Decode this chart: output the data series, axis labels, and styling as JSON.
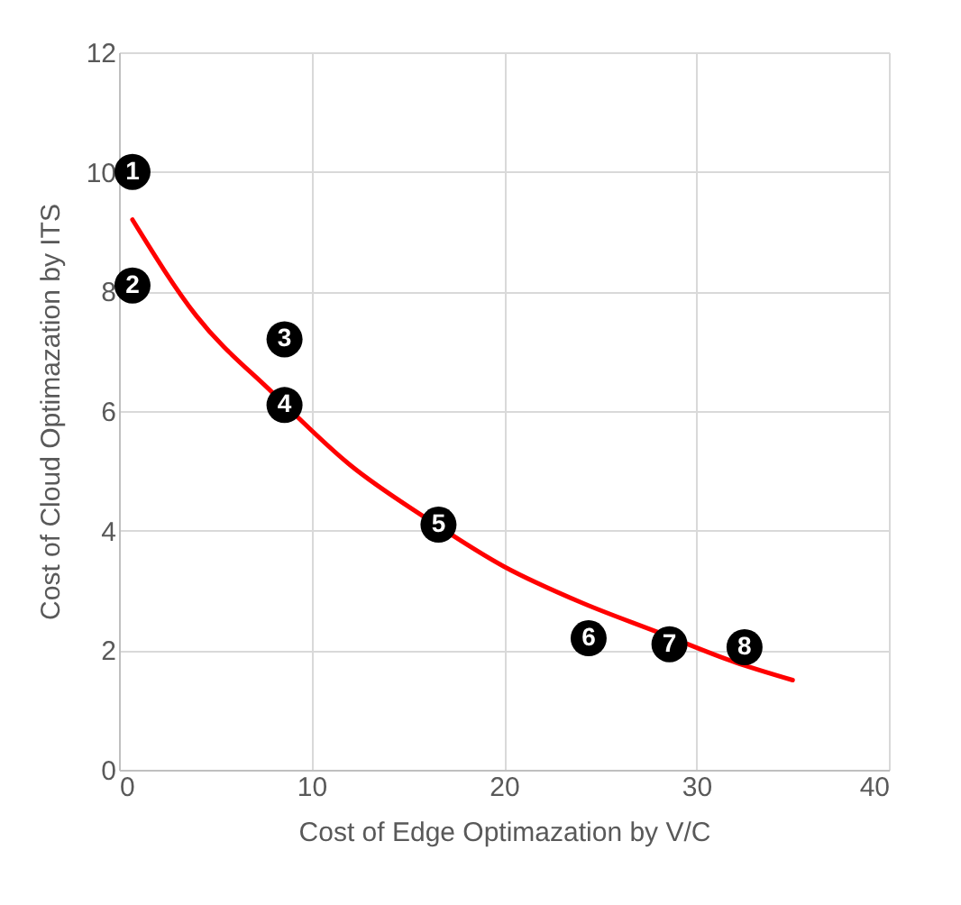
{
  "chart_data": {
    "type": "scatter",
    "xlabel": "Cost of Edge Optimazation by V/C",
    "ylabel": "Cost of Cloud Optimazation by ITS",
    "xlim": [
      0,
      40
    ],
    "ylim": [
      0,
      12
    ],
    "xticks": [
      0,
      10,
      20,
      30,
      40
    ],
    "yticks": [
      0,
      2,
      4,
      6,
      8,
      10,
      12
    ],
    "grid": true,
    "series": [
      {
        "type": "line",
        "color": "#ff0000",
        "marker": "none",
        "line_style": "solid",
        "x": [
          0.7,
          4,
          8,
          12,
          16,
          20,
          24,
          28,
          32,
          35
        ],
        "values": [
          9.2,
          7.6,
          6.3,
          5.1,
          4.2,
          3.4,
          2.8,
          2.3,
          1.8,
          1.5
        ]
      },
      {
        "color": "#000000",
        "marker": "circle",
        "x": [
          0.7,
          0.7,
          8.6,
          8.6,
          16.6,
          24.4,
          28.6,
          32.5
        ],
        "values": [
          10,
          8.1,
          7.2,
          6.1,
          4.1,
          2.2,
          2.1,
          2.05
        ]
      }
    ],
    "annotations": [
      {
        "text": "1",
        "x": 0.7,
        "y": 10
      },
      {
        "text": "2",
        "x": 0.7,
        "y": 8.1
      },
      {
        "text": "3",
        "x": 8.6,
        "y": 7.2
      },
      {
        "text": "4",
        "x": 8.6,
        "y": 6.1
      },
      {
        "text": "5",
        "x": 16.6,
        "y": 4.1
      },
      {
        "text": "6",
        "x": 24.4,
        "y": 2.2
      },
      {
        "text": "7",
        "x": 28.6,
        "y": 2.1
      },
      {
        "text": "8",
        "x": 32.5,
        "y": 2.05
      }
    ]
  }
}
